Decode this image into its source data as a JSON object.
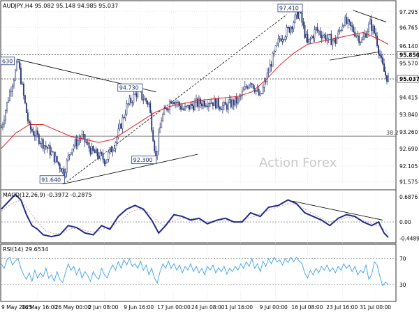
{
  "header": {
    "price_title": "AUDJPY,H4  95.082 95.148 94.985 95.037",
    "macd_title": "MACD(12,26,9) -0.3972 -0.2875",
    "rsi_title": "RSI(14) 29.6534"
  },
  "watermark": "Action Forex",
  "colors": {
    "candle": "#2a3a7a",
    "ma": "#e02020",
    "macd": "#1f2a8c",
    "signal": "#c8a0a8",
    "rsi": "#3aa0e8",
    "trendline": "#000000",
    "grid": "#cfd6e0",
    "level_line": "#888888"
  },
  "chart_data": [
    {
      "type": "candlestick",
      "symbol": "AUDJPY",
      "timeframe": "H4",
      "ohlc_last": {
        "open": 95.082,
        "high": 95.148,
        "low": 94.985,
        "close": 95.037
      },
      "ylim": [
        91.4,
        97.55
      ],
      "y_ticks": [
        "97.295",
        "96.765",
        "96.140",
        "95.570",
        "95.037",
        "94.415",
        "93.840",
        "93.260",
        "92.690",
        "92.105",
        "91.575"
      ],
      "x_ticks": [
        "9 May 2025",
        "16 May 16:00",
        "26 May 00:00",
        "2 Jun 08:00",
        "9 Jun 16:00",
        "17 Jun 00:00",
        "24 Jun 08:00",
        "1 Jul 16:00",
        "9 Jul 00:00",
        "16 Jul 08:00",
        "23 Jul 16:00",
        "31 Jul 00:00"
      ],
      "price_path": [
        [
          0,
          93.4
        ],
        [
          12,
          94.6
        ],
        [
          24,
          95.6
        ],
        [
          33,
          94.3
        ],
        [
          40,
          93.4
        ],
        [
          55,
          93.0
        ],
        [
          70,
          92.6
        ],
        [
          90,
          91.9
        ],
        [
          100,
          92.7
        ],
        [
          115,
          93.1
        ],
        [
          130,
          92.6
        ],
        [
          150,
          92.3
        ],
        [
          165,
          93.0
        ],
        [
          180,
          94.1
        ],
        [
          195,
          94.6
        ],
        [
          212,
          94.2
        ],
        [
          222,
          92.4
        ],
        [
          230,
          93.7
        ],
        [
          245,
          94.4
        ],
        [
          262,
          94.0
        ],
        [
          280,
          94.2
        ],
        [
          300,
          94.3
        ],
        [
          320,
          94.1
        ],
        [
          340,
          94.3
        ],
        [
          358,
          95.0
        ],
        [
          372,
          94.4
        ],
        [
          388,
          95.6
        ],
        [
          400,
          96.4
        ],
        [
          413,
          96.7
        ],
        [
          428,
          97.3
        ],
        [
          440,
          96.2
        ],
        [
          452,
          96.7
        ],
        [
          468,
          96.4
        ],
        [
          480,
          96.3
        ],
        [
          492,
          97.0
        ],
        [
          505,
          96.7
        ],
        [
          518,
          96.3
        ],
        [
          530,
          96.9
        ],
        [
          538,
          96.5
        ],
        [
          546,
          95.6
        ],
        [
          551,
          95.2
        ],
        [
          556,
          95.04
        ]
      ],
      "ma_path": [
        [
          0,
          92.7
        ],
        [
          20,
          93.2
        ],
        [
          40,
          93.5
        ],
        [
          60,
          93.5
        ],
        [
          80,
          93.3
        ],
        [
          100,
          93.1
        ],
        [
          120,
          93.0
        ],
        [
          140,
          92.9
        ],
        [
          160,
          93.0
        ],
        [
          180,
          93.3
        ],
        [
          200,
          93.6
        ],
        [
          220,
          93.9
        ],
        [
          240,
          94.1
        ],
        [
          260,
          94.2
        ],
        [
          280,
          94.3
        ],
        [
          300,
          94.35
        ],
        [
          320,
          94.4
        ],
        [
          340,
          94.45
        ],
        [
          360,
          94.6
        ],
        [
          380,
          95.0
        ],
        [
          400,
          95.5
        ],
        [
          420,
          95.9
        ],
        [
          440,
          96.2
        ],
        [
          460,
          96.3
        ],
        [
          480,
          96.4
        ],
        [
          500,
          96.5
        ],
        [
          520,
          96.6
        ],
        [
          540,
          96.4
        ],
        [
          556,
          96.2
        ]
      ],
      "levels": [
        {
          "value": 95.85,
          "label": "95.850",
          "style": "dotted"
        },
        {
          "value": 93.11,
          "label": "38.2",
          "style": "solid"
        },
        {
          "value": 95.037,
          "label": "95.037",
          "style": "dotted"
        }
      ],
      "annotations": [
        {
          "label": "97.410",
          "x": 415,
          "y": 97.41
        },
        {
          "label": "94.730",
          "x": 185,
          "y": 94.73
        },
        {
          "label": "92.300",
          "x": 205,
          "y": 92.3
        },
        {
          "label": "91.640",
          "x": 73,
          "y": 91.64
        },
        {
          "label": "630",
          "x": 10,
          "y": 95.63
        }
      ],
      "trendlines": [
        {
          "from": [
            22,
            95.7
          ],
          "to": [
            222,
            94.6
          ],
          "style": "solid"
        },
        {
          "from": [
            88,
            91.5
          ],
          "to": [
            282,
            92.5
          ],
          "style": "solid"
        },
        {
          "from": [
            90,
            91.5
          ],
          "to": [
            410,
            97.2
          ],
          "style": "dashed"
        },
        {
          "from": [
            505,
            97.35
          ],
          "to": [
            553,
            96.95
          ],
          "style": "solid"
        },
        {
          "from": [
            472,
            95.67
          ],
          "to": [
            544,
            95.95
          ],
          "style": "solid"
        }
      ]
    },
    {
      "type": "line",
      "title": "MACD(12,26,9)",
      "ylim": [
        -0.55,
        0.8
      ],
      "y_ticks": [
        "0.6876",
        "0.00",
        "-0.4489"
      ],
      "values_last": {
        "macd": -0.3972,
        "signal": -0.2875
      },
      "macd_path": [
        [
          0,
          0.35
        ],
        [
          10,
          0.55
        ],
        [
          20,
          0.75
        ],
        [
          28,
          0.6
        ],
        [
          36,
          0.2
        ],
        [
          44,
          -0.1
        ],
        [
          52,
          -0.2
        ],
        [
          60,
          -0.35
        ],
        [
          72,
          -0.4
        ],
        [
          84,
          -0.35
        ],
        [
          96,
          -0.1
        ],
        [
          108,
          -0.15
        ],
        [
          120,
          -0.3
        ],
        [
          132,
          -0.35
        ],
        [
          144,
          -0.1
        ],
        [
          156,
          -0.2
        ],
        [
          168,
          0.15
        ],
        [
          180,
          0.35
        ],
        [
          192,
          0.45
        ],
        [
          204,
          0.35
        ],
        [
          216,
          0.05
        ],
        [
          226,
          -0.3
        ],
        [
          236,
          -0.1
        ],
        [
          248,
          0.2
        ],
        [
          260,
          0.15
        ],
        [
          272,
          0.05
        ],
        [
          284,
          0.1
        ],
        [
          296,
          -0.05
        ],
        [
          310,
          0.05
        ],
        [
          322,
          0.1
        ],
        [
          334,
          0.0
        ],
        [
          346,
          0.0
        ],
        [
          358,
          0.25
        ],
        [
          372,
          0.15
        ],
        [
          384,
          0.4
        ],
        [
          398,
          0.45
        ],
        [
          412,
          0.6
        ],
        [
          424,
          0.5
        ],
        [
          436,
          0.25
        ],
        [
          448,
          0.15
        ],
        [
          460,
          0.05
        ],
        [
          472,
          -0.1
        ],
        [
          484,
          0.1
        ],
        [
          496,
          0.2
        ],
        [
          508,
          0.15
        ],
        [
          520,
          0.0
        ],
        [
          532,
          -0.1
        ],
        [
          542,
          0.0
        ],
        [
          550,
          -0.3
        ],
        [
          556,
          -0.42
        ]
      ],
      "signal_path": [
        [
          0,
          0.3
        ],
        [
          15,
          0.5
        ],
        [
          28,
          0.6
        ],
        [
          40,
          0.3
        ],
        [
          52,
          0.0
        ],
        [
          64,
          -0.25
        ],
        [
          76,
          -0.33
        ],
        [
          88,
          -0.3
        ],
        [
          100,
          -0.18
        ],
        [
          112,
          -0.18
        ],
        [
          124,
          -0.25
        ],
        [
          136,
          -0.28
        ],
        [
          148,
          -0.18
        ],
        [
          160,
          -0.12
        ],
        [
          172,
          0.05
        ],
        [
          184,
          0.25
        ],
        [
          196,
          0.35
        ],
        [
          208,
          0.3
        ],
        [
          220,
          0.1
        ],
        [
          232,
          -0.1
        ],
        [
          244,
          0.0
        ],
        [
          256,
          0.1
        ],
        [
          268,
          0.1
        ],
        [
          280,
          0.08
        ],
        [
          292,
          0.0
        ],
        [
          304,
          0.02
        ],
        [
          316,
          0.05
        ],
        [
          328,
          0.03
        ],
        [
          340,
          0.0
        ],
        [
          352,
          0.1
        ],
        [
          364,
          0.15
        ],
        [
          376,
          0.25
        ],
        [
          388,
          0.35
        ],
        [
          400,
          0.42
        ],
        [
          412,
          0.5
        ],
        [
          424,
          0.48
        ],
        [
          436,
          0.35
        ],
        [
          448,
          0.22
        ],
        [
          460,
          0.1
        ],
        [
          472,
          0.0
        ],
        [
          484,
          0.05
        ],
        [
          496,
          0.12
        ],
        [
          508,
          0.12
        ],
        [
          520,
          0.05
        ],
        [
          532,
          -0.05
        ],
        [
          544,
          -0.12
        ],
        [
          556,
          -0.29
        ]
      ],
      "trendline": {
        "from": [
          418,
          0.57
        ],
        "to": [
          548,
          0.05
        ],
        "style": "solid"
      }
    },
    {
      "type": "line",
      "title": "RSI(14)",
      "ylim": [
        5,
        90
      ],
      "y_ticks": [
        "70",
        "30"
      ],
      "value_last": 29.6534,
      "levels": [
        70,
        30
      ],
      "rsi_path": [
        [
          0,
          62
        ],
        [
          4,
          55
        ],
        [
          8,
          68
        ],
        [
          12,
          72
        ],
        [
          16,
          60
        ],
        [
          20,
          66
        ],
        [
          24,
          70
        ],
        [
          28,
          55
        ],
        [
          32,
          45
        ],
        [
          36,
          38
        ],
        [
          40,
          48
        ],
        [
          44,
          35
        ],
        [
          48,
          52
        ],
        [
          52,
          40
        ],
        [
          56,
          48
        ],
        [
          60,
          42
        ],
        [
          64,
          55
        ],
        [
          68,
          40
        ],
        [
          72,
          45
        ],
        [
          76,
          35
        ],
        [
          80,
          50
        ],
        [
          84,
          38
        ],
        [
          88,
          33
        ],
        [
          92,
          48
        ],
        [
          96,
          62
        ],
        [
          100,
          52
        ],
        [
          104,
          58
        ],
        [
          108,
          45
        ],
        [
          112,
          55
        ],
        [
          116,
          40
        ],
        [
          120,
          50
        ],
        [
          124,
          44
        ],
        [
          128,
          35
        ],
        [
          132,
          50
        ],
        [
          136,
          42
        ],
        [
          140,
          38
        ],
        [
          144,
          55
        ],
        [
          148,
          45
        ],
        [
          152,
          40
        ],
        [
          156,
          52
        ],
        [
          160,
          60
        ],
        [
          164,
          52
        ],
        [
          168,
          65
        ],
        [
          172,
          55
        ],
        [
          176,
          68
        ],
        [
          180,
          60
        ],
        [
          184,
          70
        ],
        [
          188,
          58
        ],
        [
          192,
          62
        ],
        [
          196,
          55
        ],
        [
          200,
          66
        ],
        [
          204,
          52
        ],
        [
          208,
          60
        ],
        [
          212,
          45
        ],
        [
          216,
          55
        ],
        [
          220,
          40
        ],
        [
          224,
          32
        ],
        [
          228,
          50
        ],
        [
          232,
          62
        ],
        [
          236,
          55
        ],
        [
          240,
          66
        ],
        [
          244,
          55
        ],
        [
          248,
          62
        ],
        [
          252,
          52
        ],
        [
          256,
          60
        ],
        [
          260,
          48
        ],
        [
          264,
          58
        ],
        [
          268,
          52
        ],
        [
          272,
          62
        ],
        [
          276,
          50
        ],
        [
          280,
          58
        ],
        [
          284,
          48
        ],
        [
          288,
          55
        ],
        [
          292,
          45
        ],
        [
          296,
          58
        ],
        [
          300,
          52
        ],
        [
          304,
          60
        ],
        [
          308,
          48
        ],
        [
          312,
          56
        ],
        [
          316,
          50
        ],
        [
          320,
          58
        ],
        [
          324,
          46
        ],
        [
          328,
          55
        ],
        [
          332,
          50
        ],
        [
          336,
          58
        ],
        [
          340,
          52
        ],
        [
          344,
          62
        ],
        [
          348,
          55
        ],
        [
          352,
          65
        ],
        [
          356,
          58
        ],
        [
          360,
          70
        ],
        [
          364,
          55
        ],
        [
          368,
          62
        ],
        [
          372,
          50
        ],
        [
          376,
          66
        ],
        [
          380,
          58
        ],
        [
          384,
          70
        ],
        [
          388,
          62
        ],
        [
          392,
          72
        ],
        [
          396,
          65
        ],
        [
          400,
          68
        ],
        [
          404,
          60
        ],
        [
          408,
          70
        ],
        [
          412,
          64
        ],
        [
          416,
          72
        ],
        [
          420,
          65
        ],
        [
          424,
          72
        ],
        [
          428,
          66
        ],
        [
          432,
          62
        ],
        [
          436,
          48
        ],
        [
          440,
          40
        ],
        [
          444,
          52
        ],
        [
          448,
          45
        ],
        [
          452,
          55
        ],
        [
          456,
          48
        ],
        [
          460,
          58
        ],
        [
          464,
          52
        ],
        [
          468,
          60
        ],
        [
          472,
          50
        ],
        [
          476,
          56
        ],
        [
          480,
          48
        ],
        [
          484,
          58
        ],
        [
          488,
          52
        ],
        [
          492,
          62
        ],
        [
          496,
          55
        ],
        [
          500,
          60
        ],
        [
          504,
          50
        ],
        [
          508,
          58
        ],
        [
          512,
          45
        ],
        [
          516,
          52
        ],
        [
          520,
          48
        ],
        [
          524,
          60
        ],
        [
          528,
          38
        ],
        [
          532,
          45
        ],
        [
          536,
          65
        ],
        [
          540,
          60
        ],
        [
          544,
          42
        ],
        [
          548,
          28
        ],
        [
          552,
          34
        ],
        [
          556,
          30
        ]
      ]
    }
  ]
}
